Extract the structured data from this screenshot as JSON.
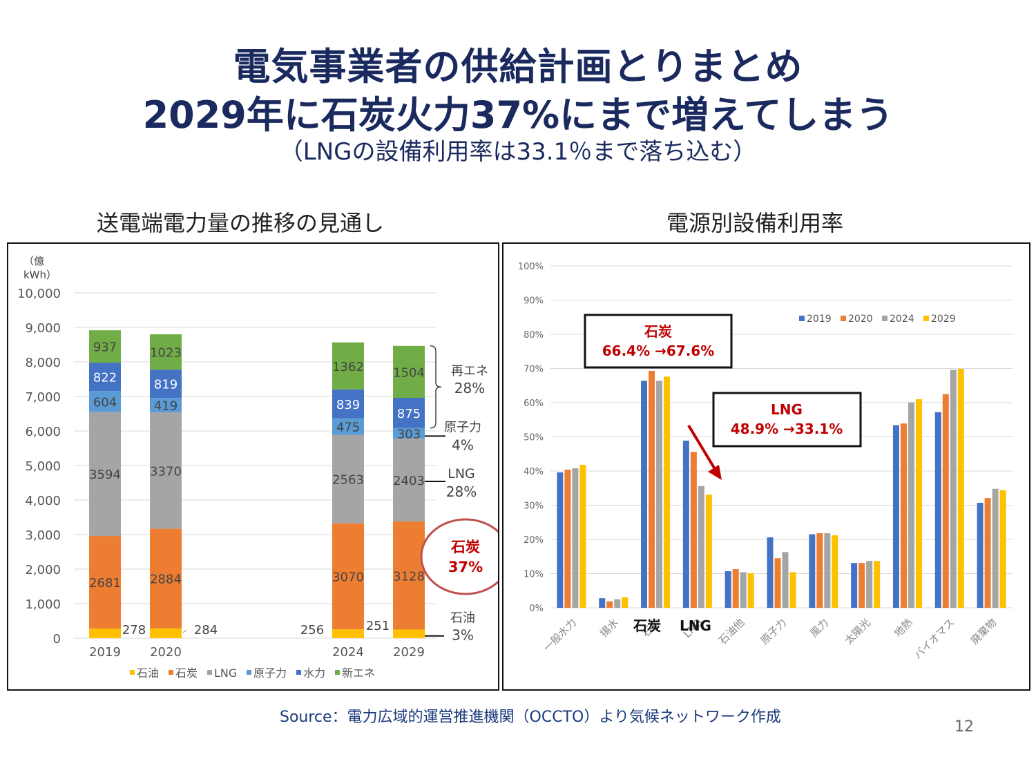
{
  "slide": {
    "title_line1": "電気事業者の供給計画とりまとめ",
    "title_line2": "2029年に石炭火力37%にまで増えてしまう",
    "title_line3": "（LNGの設備利用率は33.1％まで落ち込む）",
    "left_heading": "送電端電力量の推移の見通し",
    "right_heading": "電源別設備利用率",
    "source": "Source：電力広域的運営推進機関（OCCTO）より気候ネットワーク作成",
    "page_number": "12"
  },
  "colors": {
    "oil": "#FFC000",
    "coal": "#ED7D31",
    "lng": "#A5A5A5",
    "nuclear": "#5B9BD5",
    "hydro": "#4472C4",
    "renewable": "#70AD47",
    "y2019": "#4472C4",
    "y2020": "#ED7D31",
    "y2024": "#A5A5A5",
    "y2029": "#FFC000",
    "highlight": "#C00000",
    "circle": "#C0504D"
  },
  "chart_data": [
    {
      "type": "bar",
      "stacked": true,
      "title": "送電端電力量の推移の見通し",
      "ylabel": "（億kWh）",
      "ylim": [
        0,
        10000
      ],
      "yticks": [
        "0",
        "1,000",
        "2,000",
        "3,000",
        "4,000",
        "5,000",
        "6,000",
        "7,000",
        "8,000",
        "9,000",
        "10,000"
      ],
      "grid": true,
      "legend_position": "bottom",
      "categories": [
        "2019",
        "2020",
        "2024",
        "2029"
      ],
      "category_slots": [
        0,
        1,
        4,
        5
      ],
      "series": [
        {
          "name": "石油",
          "key": "oil",
          "values": [
            278,
            284,
            256,
            251
          ]
        },
        {
          "name": "石炭",
          "key": "coal",
          "values": [
            2681,
            2884,
            3070,
            3128
          ]
        },
        {
          "name": "LNG",
          "key": "lng",
          "values": [
            3594,
            3370,
            2563,
            2403
          ]
        },
        {
          "name": "原子力",
          "key": "nuclear",
          "values": [
            604,
            419,
            475,
            303
          ]
        },
        {
          "name": "水力",
          "key": "hydro",
          "values": [
            822,
            819,
            839,
            875
          ]
        },
        {
          "name": "新エネ",
          "key": "renewable",
          "values": [
            937,
            1023,
            1362,
            1504
          ]
        }
      ],
      "annotations": [
        {
          "label": "再エネ",
          "value": "28%"
        },
        {
          "label": "原子力",
          "value": "4%"
        },
        {
          "label": "LNG",
          "value": "28%"
        },
        {
          "label": "石炭",
          "value": "37%",
          "highlight": true
        },
        {
          "label": "石油",
          "value": "3%"
        }
      ]
    },
    {
      "type": "bar",
      "stacked": false,
      "title": "電源別設備利用率",
      "ylabel": "",
      "ylim": [
        0,
        100
      ],
      "yticks": [
        "0%",
        "10%",
        "20%",
        "30%",
        "40%",
        "50%",
        "60%",
        "70%",
        "80%",
        "90%",
        "100%"
      ],
      "grid": true,
      "legend_position": "top-right",
      "categories": [
        "一般水力",
        "揚水",
        "石炭",
        "LNG",
        "石油他",
        "原子力",
        "風力",
        "太陽光",
        "地熱",
        "バイオマス",
        "廃棄物"
      ],
      "series": [
        {
          "name": "2019",
          "key": "y2019",
          "values": [
            39.6,
            2.8,
            66.4,
            48.9,
            10.7,
            20.6,
            21.5,
            13.1,
            53.4,
            57.2,
            30.7
          ]
        },
        {
          "name": "2020",
          "key": "y2020",
          "values": [
            40.4,
            1.9,
            69.3,
            45.6,
            11.3,
            14.5,
            21.8,
            13.1,
            53.9,
            62.5,
            32.1
          ]
        },
        {
          "name": "2024",
          "key": "y2024",
          "values": [
            40.8,
            2.5,
            66.4,
            35.6,
            10.4,
            16.3,
            21.8,
            13.7,
            60.1,
            69.6,
            34.8
          ]
        },
        {
          "name": "2029",
          "key": "y2029",
          "values": [
            41.8,
            3.1,
            67.6,
            33.1,
            10.1,
            10.4,
            21.2,
            13.7,
            61.0,
            69.9,
            34.4
          ]
        }
      ],
      "annotations": [
        {
          "label": "石炭",
          "text": "66.4% →67.6%"
        },
        {
          "label": "LNG",
          "text": "48.9% →33.1%"
        }
      ],
      "overlay_labels": [
        "石炭",
        "LNG"
      ]
    }
  ]
}
